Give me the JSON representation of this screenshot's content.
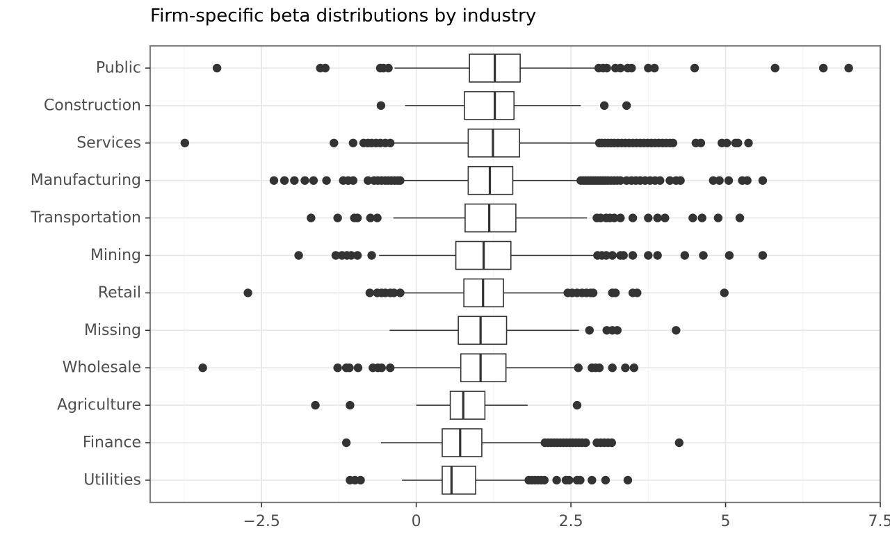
{
  "chart_data": {
    "type": "boxplot",
    "orientation": "horizontal",
    "title": "Firm-specific beta distributions by industry",
    "xlabel": "",
    "ylabel": "",
    "xlim": [
      -4.3,
      7.5
    ],
    "xticks": [
      -2.5,
      0,
      2.5,
      5,
      7.5
    ],
    "xtick_labels": [
      "−2.5",
      "0",
      "2.5",
      "5",
      "7.5"
    ],
    "grid": true,
    "colors": {
      "box_line": "#333333",
      "outlier": "#333333",
      "grid_major": "#e6e6e6",
      "grid_minor": "#f3f3f3",
      "panel_border": "#808080",
      "tick_label": "#4d4d4d"
    },
    "categories": [
      "Public",
      "Construction",
      "Services",
      "Manufacturing",
      "Transportation",
      "Mining",
      "Retail",
      "Missing",
      "Wholesale",
      "Agriculture",
      "Finance",
      "Utilities"
    ],
    "boxes": [
      {
        "category": "Public",
        "whisker_low": -0.35,
        "q1": 0.86,
        "median": 1.27,
        "q3": 1.68,
        "whisker_high": 2.9,
        "outliers": [
          -3.22,
          -1.55,
          -1.47,
          -0.58,
          -0.53,
          -0.45,
          2.95,
          3.02,
          3.08,
          3.22,
          3.3,
          3.42,
          3.48,
          3.75,
          3.85,
          4.5,
          5.8,
          6.58,
          6.99
        ]
      },
      {
        "category": "Construction",
        "whisker_low": -0.18,
        "q1": 0.78,
        "median": 1.27,
        "q3": 1.58,
        "whisker_high": 2.66,
        "outliers": [
          -0.57,
          3.04,
          3.4
        ]
      },
      {
        "category": "Services",
        "whisker_low": -0.35,
        "q1": 0.84,
        "median": 1.24,
        "q3": 1.67,
        "whisker_high": 2.92,
        "outliers": [
          -3.74,
          -1.33,
          -1.02,
          -0.85,
          -0.78,
          -0.72,
          -0.65,
          -0.58,
          -0.5,
          -0.42,
          2.96,
          3.0,
          3.05,
          3.1,
          3.15,
          3.2,
          3.26,
          3.32,
          3.38,
          3.44,
          3.5,
          3.56,
          3.62,
          3.68,
          3.74,
          3.8,
          3.86,
          3.92,
          3.98,
          4.04,
          4.1,
          4.15,
          4.52,
          4.6,
          4.94,
          5.02,
          5.16,
          5.2,
          5.37
        ]
      },
      {
        "category": "Manufacturing",
        "whisker_low": -0.2,
        "q1": 0.84,
        "median": 1.19,
        "q3": 1.56,
        "whisker_high": 2.62,
        "outliers": [
          -2.3,
          -2.13,
          -1.97,
          -1.8,
          -1.66,
          -1.45,
          -1.18,
          -1.1,
          -1.02,
          -0.78,
          -0.68,
          -0.62,
          -0.56,
          -0.5,
          -0.45,
          -0.4,
          -0.35,
          -0.3,
          -0.26,
          2.66,
          2.7,
          2.74,
          2.78,
          2.82,
          2.86,
          2.9,
          2.94,
          2.98,
          3.02,
          3.06,
          3.1,
          3.15,
          3.2,
          3.25,
          3.3,
          3.4,
          3.48,
          3.55,
          3.62,
          3.7,
          3.78,
          3.86,
          3.94,
          4.1,
          4.2,
          4.27,
          4.8,
          4.9,
          5.05,
          5.27,
          5.35,
          5.6
        ]
      },
      {
        "category": "Transportation",
        "whisker_low": -0.37,
        "q1": 0.79,
        "median": 1.18,
        "q3": 1.61,
        "whisker_high": 2.76,
        "outliers": [
          -1.7,
          -1.27,
          -1.0,
          -0.95,
          -0.74,
          -0.63,
          2.92,
          2.98,
          3.07,
          3.13,
          3.2,
          3.3,
          3.5,
          3.75,
          3.9,
          4.02,
          4.47,
          4.62,
          4.88,
          5.23
        ]
      },
      {
        "category": "Mining",
        "whisker_low": -0.6,
        "q1": 0.64,
        "median": 1.09,
        "q3": 1.53,
        "whisker_high": 2.9,
        "outliers": [
          -1.9,
          -1.3,
          -1.2,
          -1.12,
          -1.05,
          -0.95,
          -0.72,
          2.93,
          3.0,
          3.07,
          3.17,
          3.3,
          3.35,
          3.5,
          3.75,
          3.9,
          4.34,
          4.64,
          5.06,
          5.6
        ]
      },
      {
        "category": "Retail",
        "whisker_low": -0.25,
        "q1": 0.77,
        "median": 1.08,
        "q3": 1.41,
        "whisker_high": 2.42,
        "outliers": [
          -2.72,
          -0.75,
          -0.63,
          -0.56,
          -0.5,
          -0.42,
          -0.36,
          -0.26,
          2.45,
          2.52,
          2.6,
          2.68,
          2.75,
          2.82,
          2.86,
          3.17,
          3.22,
          3.5,
          3.57,
          4.98
        ]
      },
      {
        "category": "Missing",
        "whisker_low": -0.43,
        "q1": 0.68,
        "median": 1.04,
        "q3": 1.46,
        "whisker_high": 2.63,
        "outliers": [
          2.8,
          3.08,
          3.17,
          3.25,
          4.2
        ]
      },
      {
        "category": "Wholesale",
        "whisker_low": -0.4,
        "q1": 0.72,
        "median": 1.04,
        "q3": 1.45,
        "whisker_high": 2.58,
        "outliers": [
          -3.45,
          -1.27,
          -1.13,
          -1.08,
          -0.94,
          -0.7,
          -0.62,
          -0.56,
          -0.42,
          2.62,
          2.84,
          2.9,
          2.96,
          3.17,
          3.38,
          3.52
        ]
      },
      {
        "category": "Agriculture",
        "whisker_low": 0.0,
        "q1": 0.55,
        "median": 0.76,
        "q3": 1.11,
        "whisker_high": 1.8,
        "outliers": [
          -1.63,
          -1.07,
          2.6
        ]
      },
      {
        "category": "Finance",
        "whisker_low": -0.57,
        "q1": 0.42,
        "median": 0.71,
        "q3": 1.06,
        "whisker_high": 2.06,
        "outliers": [
          -1.13,
          2.08,
          2.13,
          2.18,
          2.23,
          2.28,
          2.33,
          2.38,
          2.43,
          2.48,
          2.53,
          2.58,
          2.63,
          2.68,
          2.74,
          2.92,
          2.98,
          3.04,
          3.1,
          3.16,
          4.25
        ]
      },
      {
        "category": "Utilities",
        "whisker_low": -0.23,
        "q1": 0.42,
        "median": 0.57,
        "q3": 0.96,
        "whisker_high": 1.78,
        "outliers": [
          -1.07,
          -0.99,
          -0.9,
          1.82,
          1.87,
          1.92,
          1.97,
          2.02,
          2.07,
          2.27,
          2.42,
          2.47,
          2.6,
          2.65,
          2.84,
          3.06,
          3.42
        ]
      }
    ]
  }
}
